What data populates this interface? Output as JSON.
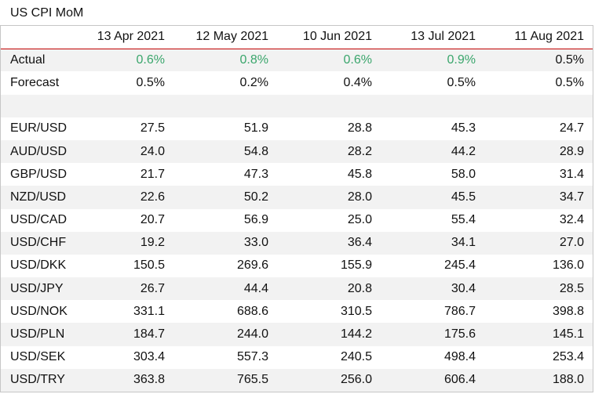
{
  "title": "US CPI MoM",
  "headers": [
    "",
    "13 Apr 2021",
    "12 May 2021",
    "10 Jun 2021",
    "13 Jul 2021",
    "11 Aug 2021"
  ],
  "actual": {
    "label": "Actual",
    "values": [
      "0.6%",
      "0.8%",
      "0.6%",
      "0.9%",
      "0.5%"
    ],
    "highlight": [
      true,
      true,
      true,
      true,
      false
    ],
    "highlight_color": "#3aa66c"
  },
  "forecast": {
    "label": "Forecast",
    "values": [
      "0.5%",
      "0.2%",
      "0.4%",
      "0.5%",
      "0.5%"
    ]
  },
  "pairs": [
    {
      "label": "EUR/USD",
      "values": [
        "27.5",
        "51.9",
        "28.8",
        "45.3",
        "24.7"
      ]
    },
    {
      "label": "AUD/USD",
      "values": [
        "24.0",
        "54.8",
        "28.2",
        "44.2",
        "28.9"
      ]
    },
    {
      "label": "GBP/USD",
      "values": [
        "21.7",
        "47.3",
        "45.8",
        "58.0",
        "31.4"
      ]
    },
    {
      "label": "NZD/USD",
      "values": [
        "22.6",
        "50.2",
        "28.0",
        "45.5",
        "34.7"
      ]
    },
    {
      "label": "USD/CAD",
      "values": [
        "20.7",
        "56.9",
        "25.0",
        "55.4",
        "32.4"
      ]
    },
    {
      "label": "USD/CHF",
      "values": [
        "19.2",
        "33.0",
        "36.4",
        "34.1",
        "27.0"
      ]
    },
    {
      "label": "USD/DKK",
      "values": [
        "150.5",
        "269.6",
        "155.9",
        "245.4",
        "136.0"
      ]
    },
    {
      "label": "USD/JPY",
      "values": [
        "26.7",
        "44.4",
        "20.8",
        "30.4",
        "28.5"
      ]
    },
    {
      "label": "USD/NOK",
      "values": [
        "331.1",
        "688.6",
        "310.5",
        "786.7",
        "398.8"
      ]
    },
    {
      "label": "USD/PLN",
      "values": [
        "184.7",
        "244.0",
        "144.2",
        "175.6",
        "145.1"
      ]
    },
    {
      "label": "USD/SEK",
      "values": [
        "303.4",
        "557.3",
        "240.5",
        "498.4",
        "253.4"
      ]
    },
    {
      "label": "USD/TRY",
      "values": [
        "363.8",
        "765.5",
        "256.0",
        "606.4",
        "188.0"
      ]
    }
  ]
}
